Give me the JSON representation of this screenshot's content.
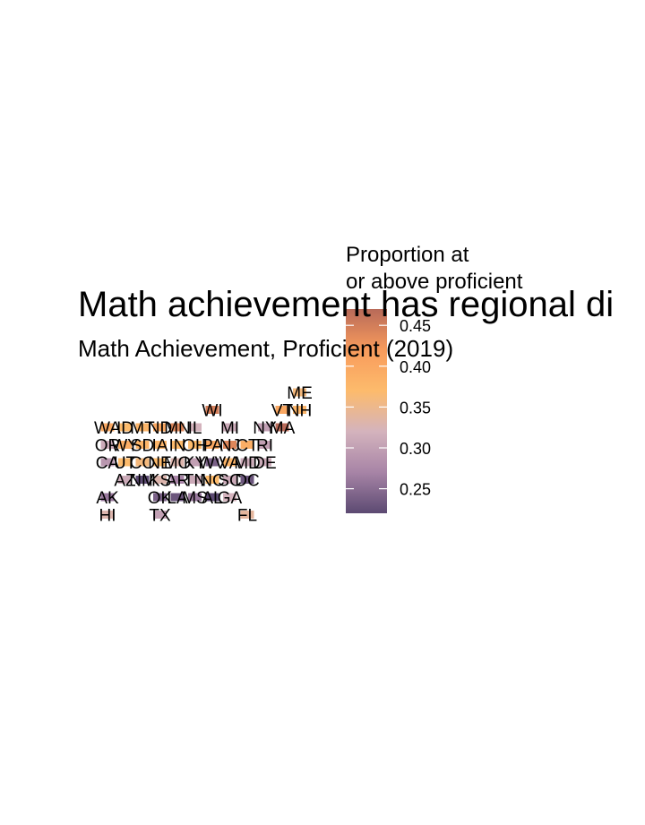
{
  "chart_data": {
    "type": "heatmap",
    "title": "Math achievement has regional di",
    "subtitle": "Math Achievement, Proficient (2019)",
    "legend": {
      "title_lines": [
        "Proportion at",
        "or above proficient"
      ],
      "placement": "right",
      "min": 0.22,
      "max": 0.47,
      "ticks": [
        0.25,
        0.3,
        0.35,
        0.4,
        0.45
      ],
      "tick_labels": [
        "0.25",
        "0.30",
        "0.35",
        "0.40",
        "0.45"
      ],
      "colors": [
        "#5c4a72",
        "#a784a6",
        "#d4b3bd",
        "#fdbb6c",
        "#f89b5c",
        "#b86a59"
      ]
    },
    "grid": false,
    "states": [
      {
        "abbr": "ME",
        "col": 11,
        "row": 0,
        "value": 0.36
      },
      {
        "abbr": "WI",
        "col": 6,
        "row": 1,
        "value": 0.45
      },
      {
        "abbr": "VT",
        "col": 10,
        "row": 1,
        "value": 0.4
      },
      {
        "abbr": "NH",
        "col": 11,
        "row": 1,
        "value": 0.38
      },
      {
        "abbr": "WA",
        "col": 0,
        "row": 2,
        "value": 0.4
      },
      {
        "abbr": "ID",
        "col": 1,
        "row": 2,
        "value": 0.37
      },
      {
        "abbr": "MT",
        "col": 2,
        "row": 2,
        "value": 0.38
      },
      {
        "abbr": "ND",
        "col": 3,
        "row": 2,
        "value": 0.4
      },
      {
        "abbr": "MN",
        "col": 4,
        "row": 2,
        "value": 0.44
      },
      {
        "abbr": "IL",
        "col": 5,
        "row": 2,
        "value": 0.32
      },
      {
        "abbr": "MI",
        "col": 7,
        "row": 2,
        "value": 0.31
      },
      {
        "abbr": "NY",
        "col": 9,
        "row": 2,
        "value": 0.3
      },
      {
        "abbr": "MA",
        "col": 10,
        "row": 2,
        "value": 0.47
      },
      {
        "abbr": "OR",
        "col": 0,
        "row": 3,
        "value": 0.31
      },
      {
        "abbr": "WY",
        "col": 1,
        "row": 3,
        "value": 0.39
      },
      {
        "abbr": "SD",
        "col": 2,
        "row": 3,
        "value": 0.38
      },
      {
        "abbr": "IA",
        "col": 3,
        "row": 3,
        "value": 0.38
      },
      {
        "abbr": "IN",
        "col": 4,
        "row": 3,
        "value": 0.37
      },
      {
        "abbr": "OH",
        "col": 5,
        "row": 3,
        "value": 0.37
      },
      {
        "abbr": "PA",
        "col": 6,
        "row": 3,
        "value": 0.4
      },
      {
        "abbr": "NJ",
        "col": 7,
        "row": 3,
        "value": 0.44
      },
      {
        "abbr": "CT",
        "col": 8,
        "row": 3,
        "value": 0.39
      },
      {
        "abbr": "RI",
        "col": 9,
        "row": 3,
        "value": 0.3
      },
      {
        "abbr": "CA",
        "col": 0,
        "row": 4,
        "value": 0.29
      },
      {
        "abbr": "UT",
        "col": 1,
        "row": 4,
        "value": 0.37
      },
      {
        "abbr": "CO",
        "col": 2,
        "row": 4,
        "value": 0.36
      },
      {
        "abbr": "NE",
        "col": 3,
        "row": 4,
        "value": 0.37
      },
      {
        "abbr": "MO",
        "col": 4,
        "row": 4,
        "value": 0.33
      },
      {
        "abbr": "KY",
        "col": 5,
        "row": 4,
        "value": 0.3
      },
      {
        "abbr": "WV",
        "col": 6,
        "row": 4,
        "value": 0.24
      },
      {
        "abbr": "VA",
        "col": 7,
        "row": 4,
        "value": 0.38
      },
      {
        "abbr": "MD",
        "col": 8,
        "row": 4,
        "value": 0.31
      },
      {
        "abbr": "DE",
        "col": 9,
        "row": 4,
        "value": 0.31
      },
      {
        "abbr": "AZ",
        "col": 1,
        "row": 5,
        "value": 0.31
      },
      {
        "abbr": "NM",
        "col": 2,
        "row": 5,
        "value": 0.21
      },
      {
        "abbr": "KS",
        "col": 3,
        "row": 5,
        "value": 0.33
      },
      {
        "abbr": "AR",
        "col": 4,
        "row": 5,
        "value": 0.27
      },
      {
        "abbr": "TN",
        "col": 5,
        "row": 5,
        "value": 0.31
      },
      {
        "abbr": "NC",
        "col": 6,
        "row": 5,
        "value": 0.37
      },
      {
        "abbr": "SC",
        "col": 7,
        "row": 5,
        "value": 0.31
      },
      {
        "abbr": "DC",
        "col": 8,
        "row": 5,
        "value": 0.23
      },
      {
        "abbr": "AK",
        "col": 0,
        "row": 6,
        "value": 0.26
      },
      {
        "abbr": "OK",
        "col": 3,
        "row": 6,
        "value": 0.24
      },
      {
        "abbr": "LA",
        "col": 4,
        "row": 6,
        "value": 0.23
      },
      {
        "abbr": "MS",
        "col": 5,
        "row": 6,
        "value": 0.26
      },
      {
        "abbr": "AL",
        "col": 6,
        "row": 6,
        "value": 0.21
      },
      {
        "abbr": "GA",
        "col": 7,
        "row": 6,
        "value": 0.32
      },
      {
        "abbr": "HI",
        "col": 0,
        "row": 7,
        "value": 0.33
      },
      {
        "abbr": "TX",
        "col": 3,
        "row": 7,
        "value": 0.3
      },
      {
        "abbr": "FL",
        "col": 8,
        "row": 7,
        "value": 0.34
      }
    ]
  }
}
